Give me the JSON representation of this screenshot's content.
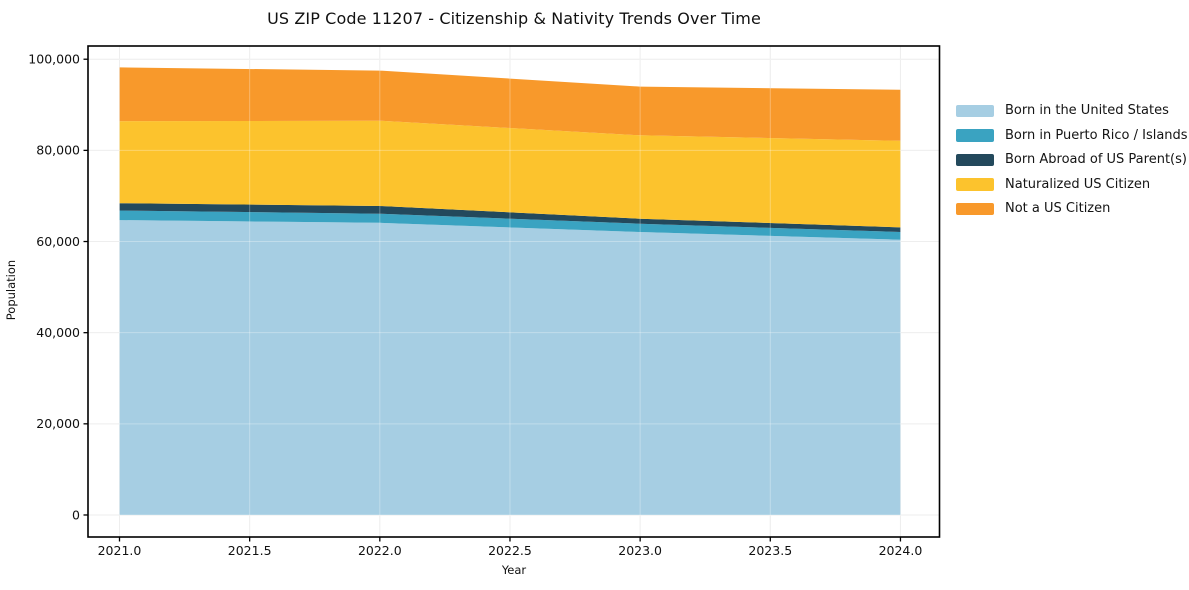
{
  "chart_data": {
    "type": "area",
    "stacked": true,
    "title": "US ZIP Code 11207 - Citizenship & Nativity Trends Over Time",
    "xlabel": "Year",
    "ylabel": "Population",
    "x": [
      2021,
      2022,
      2023,
      2024
    ],
    "series": [
      {
        "name": "Born in the United States",
        "color": "#a6cee3",
        "values": [
          64700,
          64100,
          62100,
          60400
        ]
      },
      {
        "name": "Born in Puerto Rico / Islands",
        "color": "#3aa3c1",
        "values": [
          2100,
          2000,
          1800,
          1700
        ]
      },
      {
        "name": "Born Abroad of US Parent(s)",
        "color": "#23495c",
        "values": [
          1600,
          1700,
          1100,
          1000
        ]
      },
      {
        "name": "Naturalized US Citizen",
        "color": "#fcc32d",
        "values": [
          18000,
          18700,
          18300,
          19000
        ]
      },
      {
        "name": "Not a US Citizen",
        "color": "#f8992b",
        "values": [
          11800,
          11000,
          10700,
          11200
        ]
      }
    ],
    "stacked_totals": [
      98200,
      97500,
      94000,
      93300
    ],
    "xlim": [
      2020.879,
      2024.15
    ],
    "ylim": [
      -4830,
      102900
    ],
    "x_ticks": [
      {
        "value": 2021.0,
        "label": "2021.0"
      },
      {
        "value": 2021.5,
        "label": "2021.5"
      },
      {
        "value": 2022.0,
        "label": "2022.0"
      },
      {
        "value": 2022.5,
        "label": "2022.5"
      },
      {
        "value": 2023.0,
        "label": "2023.0"
      },
      {
        "value": 2023.5,
        "label": "2023.5"
      },
      {
        "value": 2024.0,
        "label": "2024.0"
      }
    ],
    "y_ticks": [
      {
        "value": 0,
        "label": "0"
      },
      {
        "value": 20000,
        "label": "20,000"
      },
      {
        "value": 40000,
        "label": "40,000"
      },
      {
        "value": 60000,
        "label": "60,000"
      },
      {
        "value": 80000,
        "label": "80,000"
      },
      {
        "value": 100000,
        "label": "100,000"
      }
    ],
    "grid": true,
    "legend_position": "right-outside",
    "style": {
      "grid_color": "#e7e7e7",
      "spine_color": "#000000",
      "background": "#ffffff",
      "text_color": "#111111"
    }
  }
}
